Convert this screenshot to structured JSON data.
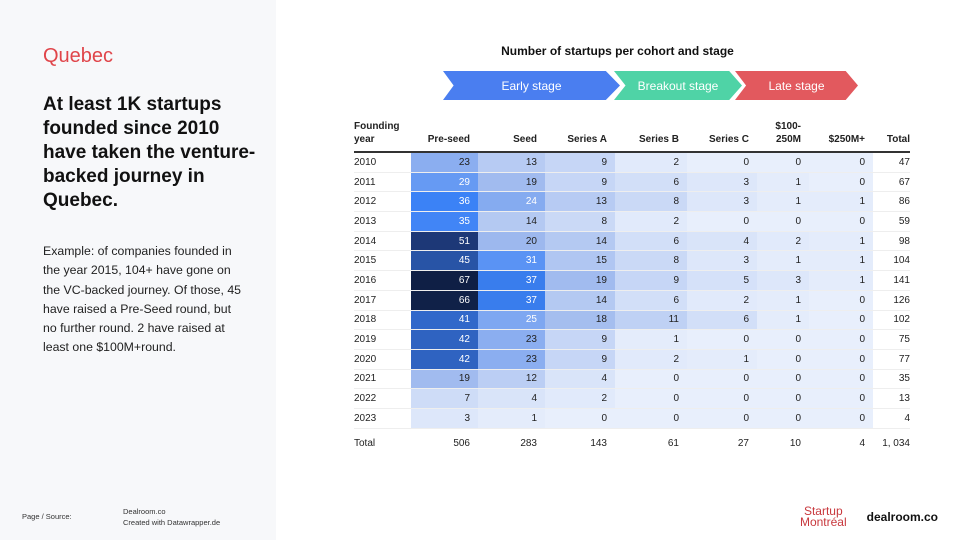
{
  "left": {
    "region": "Quebec",
    "headline": "At least 1K startups founded since 2010 have taken the venture-backed journey in Quebec.",
    "paragraph": "Example: of companies founded in the year 2015, 104+ have gone on the VC-backed journey.  Of those, 45 have raised a Pre-Seed round, but no further round. 2 have raised at least one $100M+round."
  },
  "footer": {
    "page": "Page /",
    "source_label": "Source:",
    "source": "Dealroom.co",
    "created": "Created with Datawrapper.de"
  },
  "logos": {
    "startup": "Startup",
    "montreal": "Montréal",
    "dealroom": "dealroom.co"
  },
  "chart_data": {
    "type": "table",
    "title": "Number of startups per cohort and stage",
    "stages": [
      {
        "label": "Early stage",
        "color": "#4a7ef0"
      },
      {
        "label": "Breakout stage",
        "color": "#4fd3a6"
      },
      {
        "label": "Late stage",
        "color": "#e2595e"
      }
    ],
    "columns": [
      "Founding year",
      "Pre-seed",
      "Seed",
      "Series A",
      "Series B",
      "Series C",
      "$100-250M",
      "$250M+",
      "Total"
    ],
    "rows": [
      [
        "2010",
        23,
        13,
        9,
        2,
        0,
        0,
        0,
        47
      ],
      [
        "2011",
        29,
        19,
        9,
        6,
        3,
        1,
        0,
        67
      ],
      [
        "2012",
        36,
        24,
        13,
        8,
        3,
        1,
        1,
        86
      ],
      [
        "2013",
        35,
        14,
        8,
        2,
        0,
        0,
        0,
        59
      ],
      [
        "2014",
        51,
        20,
        14,
        6,
        4,
        2,
        1,
        98
      ],
      [
        "2015",
        45,
        31,
        15,
        8,
        3,
        1,
        1,
        104
      ],
      [
        "2016",
        67,
        37,
        19,
        9,
        5,
        3,
        1,
        141
      ],
      [
        "2017",
        66,
        37,
        14,
        6,
        2,
        1,
        0,
        126
      ],
      [
        "2018",
        41,
        25,
        18,
        11,
        6,
        1,
        0,
        102
      ],
      [
        "2019",
        42,
        23,
        9,
        1,
        0,
        0,
        0,
        75
      ],
      [
        "2020",
        42,
        23,
        9,
        2,
        1,
        0,
        0,
        77
      ],
      [
        "2021",
        19,
        12,
        4,
        0,
        0,
        0,
        0,
        35
      ],
      [
        "2022",
        7,
        4,
        2,
        0,
        0,
        0,
        0,
        13
      ],
      [
        "2023",
        3,
        1,
        0,
        0,
        0,
        0,
        0,
        4
      ]
    ],
    "totals": [
      "Total",
      "506",
      "283",
      "143",
      "61",
      "27",
      "10",
      "4",
      "1, 034"
    ]
  }
}
